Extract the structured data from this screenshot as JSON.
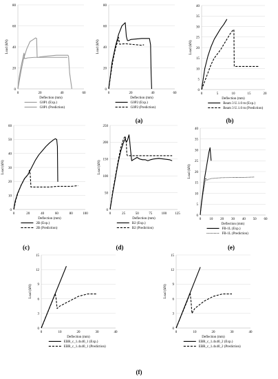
{
  "figure_labels": [
    "(a)",
    "(b)",
    "(c)",
    "(d)",
    "(e)",
    "(f)"
  ],
  "chart_data": [
    {
      "id": "a",
      "type": "line",
      "xlabel": "Deflection (mm)",
      "ylabel": "Load (kN)",
      "xlim": [
        0,
        60
      ],
      "ylim": [
        0,
        80
      ],
      "xticks": [
        0,
        20,
        40,
        60
      ],
      "yticks": [
        0,
        20,
        40,
        60,
        80
      ],
      "grid": true,
      "legend_placement": "bottom",
      "series": [
        {
          "name": "G0P1 (Exp.)",
          "style": "solid",
          "color": "#999999",
          "x": [
            0,
            2.5,
            5,
            8,
            11,
            14,
            16,
            17,
            17.5,
            18,
            19,
            20,
            25,
            30,
            35,
            40,
            44,
            45.5,
            46,
            47,
            49
          ],
          "y": [
            0,
            15,
            28,
            38,
            45,
            47,
            48.5,
            48,
            30,
            30,
            30,
            30.5,
            31,
            31.5,
            32,
            32,
            32,
            32,
            31,
            15,
            0
          ]
        },
        {
          "name": "G0P1 (Prediction)",
          "style": "solid",
          "color": "#999999",
          "x": [
            0,
            1,
            3,
            5.5,
            6,
            7,
            9,
            15,
            25,
            35,
            45
          ],
          "y": [
            0,
            10,
            22,
            34,
            29,
            29,
            29.5,
            30,
            30,
            30,
            30
          ]
        }
      ]
    },
    {
      "id": "a2",
      "type": "line",
      "xlabel": "Deflection (mm)",
      "ylabel": "Load (kN)",
      "xlim": [
        0,
        60
      ],
      "ylim": [
        0,
        80
      ],
      "xticks": [
        0,
        20,
        40,
        60
      ],
      "yticks": [
        0,
        20,
        40,
        60,
        80
      ],
      "grid": true,
      "legend_placement": "bottom",
      "series": [
        {
          "name": "G0P2 (Exp.)",
          "style": "solid",
          "color": "#000000",
          "x": [
            0,
            3,
            6,
            9,
            12,
            15,
            16,
            17,
            18,
            20,
            25,
            30,
            35,
            37,
            38,
            38.5,
            39
          ],
          "y": [
            0,
            25,
            40,
            52,
            60,
            63,
            50,
            46,
            46,
            47,
            47.5,
            48,
            48,
            48,
            42,
            15,
            0
          ]
        },
        {
          "name": "G0P2 (Prediction)",
          "style": "dashed",
          "color": "#000000",
          "x": [
            0,
            2,
            4,
            6,
            8,
            9,
            9.5,
            10,
            15,
            20,
            25,
            30,
            32
          ],
          "y": [
            0,
            15,
            28,
            38,
            45,
            49,
            45,
            42.5,
            43,
            42.5,
            42,
            41.5,
            42
          ]
        }
      ]
    },
    {
      "id": "b",
      "type": "line",
      "xlabel": "Deflection (mm)",
      "ylabel": "Load (kN)",
      "xlim": [
        0,
        20
      ],
      "ylim": [
        0,
        40
      ],
      "xticks": [
        0,
        5,
        10,
        15,
        20
      ],
      "yticks": [
        0,
        5,
        10,
        15,
        20,
        25,
        30,
        35,
        40
      ],
      "grid": true,
      "legend_placement": "bottom",
      "series": [
        {
          "name": "Beam 3 U.1.0 m (Exp.)",
          "style": "solid",
          "color": "#000000",
          "x": [
            0,
            0.5,
            1,
            2,
            3,
            4,
            5,
            6,
            7,
            8
          ],
          "y": [
            0,
            5,
            10,
            16,
            20.5,
            24,
            26.5,
            29,
            31,
            33.5
          ]
        },
        {
          "name": "Beam 3 U.1.0 m (Prediction)",
          "style": "dashed",
          "color": "#000000",
          "x": [
            0,
            1,
            2,
            3,
            4,
            5,
            6,
            7,
            8,
            9,
            10,
            10.2,
            10.3,
            12,
            14,
            16,
            18
          ],
          "y": [
            0,
            4,
            8,
            12,
            15,
            17,
            19,
            21.5,
            24,
            26.5,
            28.5,
            28.5,
            11,
            11,
            11,
            11,
            11
          ]
        }
      ]
    },
    {
      "id": "c",
      "type": "line",
      "xlabel": "Deflection (mm)",
      "ylabel": "Load (kN)",
      "xlim": [
        0,
        100
      ],
      "ylim": [
        0,
        60
      ],
      "xticks": [
        0,
        20,
        40,
        60,
        80,
        100
      ],
      "yticks": [
        0,
        10,
        20,
        30,
        40,
        50,
        60
      ],
      "grid": true,
      "legend_placement": "bottom",
      "series": [
        {
          "name": "2B (Exp.)",
          "style": "solid",
          "color": "#000000",
          "x": [
            0,
            2,
            5,
            10,
            15,
            20,
            25,
            30,
            35,
            40,
            45,
            50,
            55,
            58,
            60,
            61,
            61.5,
            62
          ],
          "y": [
            0,
            6,
            11,
            17,
            22,
            25,
            30,
            35,
            39,
            42,
            45,
            47.5,
            49.5,
            50.5,
            50,
            45,
            20,
            20
          ]
        },
        {
          "name": "2B (Prediction)",
          "style": "dashed",
          "color": "#000000",
          "x": [
            0,
            3,
            6,
            10,
            15,
            20,
            22,
            23,
            24,
            30,
            40,
            50,
            60,
            70,
            80,
            90
          ],
          "y": [
            0,
            7,
            12,
            17,
            22,
            25,
            28,
            25,
            16,
            16,
            16,
            16,
            16.5,
            16.5,
            16.5,
            17
          ]
        }
      ]
    },
    {
      "id": "d",
      "type": "line",
      "xlabel": "Deflection (mm)",
      "ylabel": "Load (kN)",
      "xlim": [
        0,
        125
      ],
      "ylim": [
        0,
        250
      ],
      "xticks": [
        0,
        25,
        50,
        75,
        100,
        125
      ],
      "yticks": [
        0,
        50,
        100,
        150,
        200,
        250
      ],
      "grid": true,
      "legend_placement": "bottom",
      "series": [
        {
          "name": "B2 (Exp.)",
          "style": "solid",
          "color": "#000000",
          "x": [
            0,
            5,
            10,
            15,
            20,
            25,
            28,
            30,
            32,
            35,
            36,
            38,
            40,
            45,
            50,
            55,
            60,
            65,
            70,
            75,
            80,
            90,
            100,
            110,
            115
          ],
          "y": [
            0,
            50,
            95,
            140,
            175,
            200,
            210,
            200,
            205,
            222,
            210,
            175,
            145,
            150,
            155,
            150,
            148,
            148,
            145,
            148,
            150,
            152,
            150,
            148,
            145
          ]
        },
        {
          "name": "B2 (Prediction)",
          "style": "dashed",
          "color": "#000000",
          "x": [
            0,
            5,
            10,
            15,
            20,
            25,
            28,
            30,
            31,
            32,
            40,
            60,
            80,
            100,
            115
          ],
          "y": [
            0,
            55,
            100,
            145,
            185,
            210,
            218,
            200,
            165,
            160,
            160,
            160,
            160,
            160,
            160
          ]
        }
      ]
    },
    {
      "id": "e",
      "type": "line",
      "xlabel": "Deflection (mm)",
      "ylabel": "Load (kN)",
      "xlim": [
        0,
        60
      ],
      "ylim": [
        0,
        40
      ],
      "xticks": [
        0,
        10,
        20,
        30,
        40,
        50,
        60
      ],
      "yticks": [
        0,
        5,
        10,
        15,
        20,
        25,
        30,
        35,
        40
      ],
      "grid": true,
      "legend_placement": "bottom",
      "series": [
        {
          "name": "FB-1L (Exp.)",
          "style": "solid",
          "color": "#000000",
          "x": [
            0,
            1,
            2,
            3,
            4,
            5,
            6,
            7,
            8,
            8.5,
            9,
            10
          ],
          "y": [
            0,
            5,
            9,
            13,
            17,
            20,
            23,
            26,
            29,
            30,
            31,
            25
          ]
        },
        {
          "name": "FB-1L (Prediction)",
          "style": "dotted",
          "color": "#000000",
          "x": [
            0,
            1,
            2,
            3,
            4,
            5,
            6,
            8,
            10,
            15,
            20,
            30,
            40,
            50
          ],
          "y": [
            0,
            4,
            8,
            11,
            14,
            17,
            16,
            16.5,
            16.8,
            17,
            17.2,
            17.3,
            17.3,
            17.5
          ]
        }
      ]
    },
    {
      "id": "f1",
      "type": "line",
      "xlabel": "Deflection (mm)",
      "ylabel": "Load (kN)",
      "xlim": [
        0,
        40
      ],
      "ylim": [
        0,
        15
      ],
      "xticks": [
        0,
        10,
        20,
        30,
        40
      ],
      "yticks": [
        0,
        3,
        6,
        9,
        12,
        15
      ],
      "grid": true,
      "legend_placement": "bottom",
      "series": [
        {
          "name": "EBR_c_1.4x40_1 (Exp.)",
          "style": "solid",
          "color": "#000000",
          "x": [
            0,
            13.5
          ],
          "y": [
            0,
            12.7
          ]
        },
        {
          "name": "EBR_c_1.4x40_1 (Prediction)",
          "style": "dashed",
          "color": "#000000",
          "x": [
            0,
            3,
            6,
            7.5,
            8,
            8.5,
            10,
            15,
            20,
            25,
            30
          ],
          "y": [
            0,
            2.8,
            5.6,
            7.1,
            6,
            4,
            4.5,
            5.5,
            6.5,
            7,
            7
          ]
        }
      ]
    },
    {
      "id": "f2",
      "type": "line",
      "xlabel": "Deflection (mm)",
      "ylabel": "Load (kN)",
      "xlim": [
        0,
        40
      ],
      "ylim": [
        0,
        15
      ],
      "xticks": [
        0,
        10,
        20,
        30,
        40
      ],
      "yticks": [
        0,
        3,
        6,
        9,
        12,
        15
      ],
      "grid": true,
      "legend_placement": "bottom",
      "series": [
        {
          "name": "EBR_c_1.4x40_2 (Exp.)",
          "style": "solid",
          "color": "#000000",
          "x": [
            0,
            13
          ],
          "y": [
            0,
            12.5
          ]
        },
        {
          "name": "EBR_c_1.4x40_2 (Prediction)",
          "style": "dashed",
          "color": "#000000",
          "x": [
            0,
            3,
            6,
            7.5,
            8,
            8.5,
            10,
            15,
            20,
            25,
            30
          ],
          "y": [
            0,
            2.8,
            5.6,
            7.2,
            5.5,
            3,
            4,
            5.5,
            6.5,
            7,
            7
          ]
        }
      ]
    }
  ]
}
